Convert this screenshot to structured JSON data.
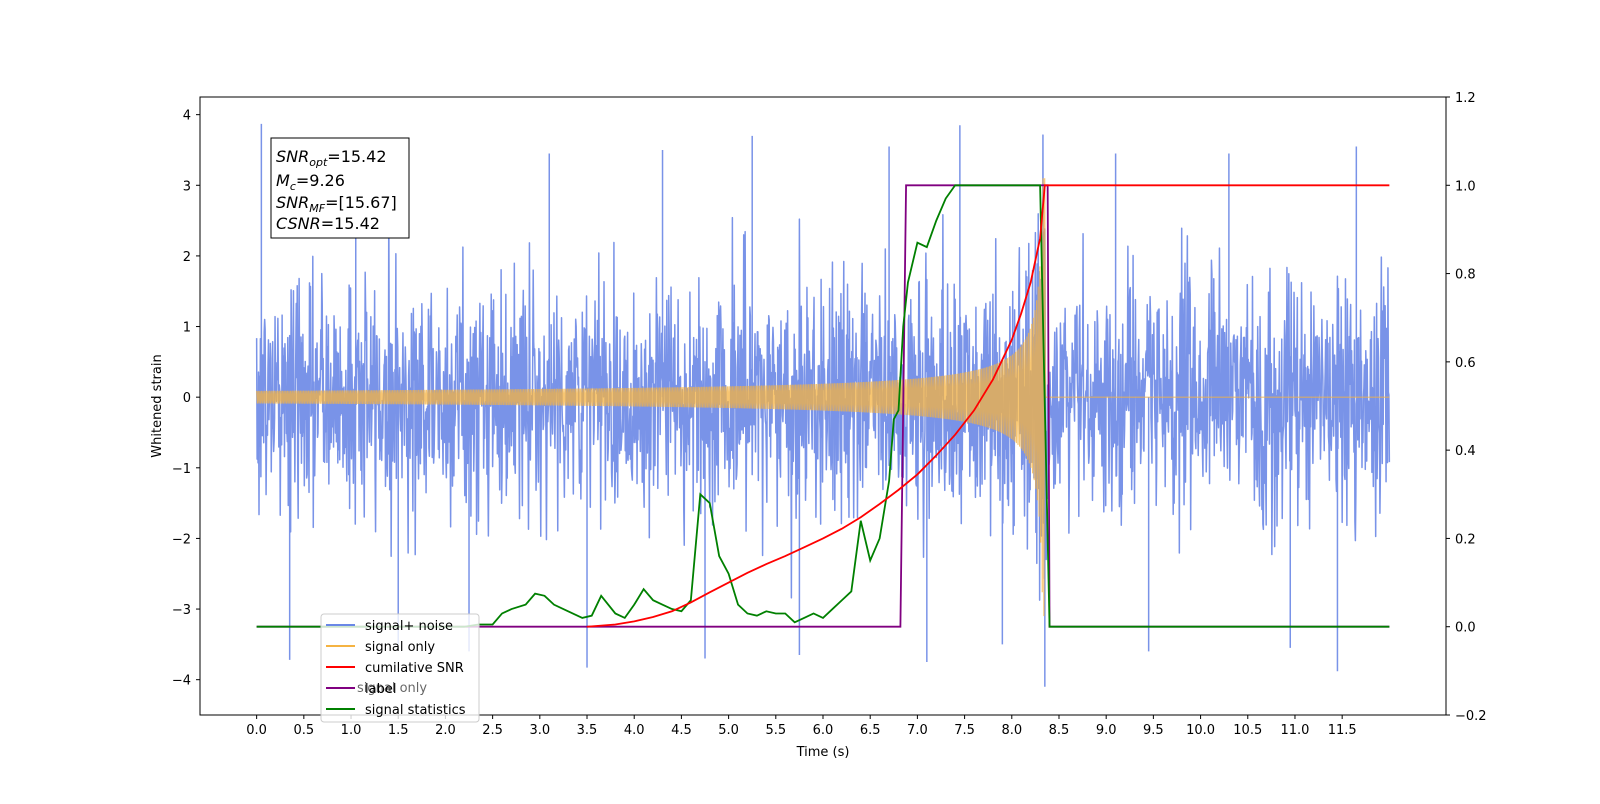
{
  "chart_data": {
    "type": "line",
    "xlabel": "Time (s)",
    "ylabel": "Whitened strain",
    "xlim": [
      -0.6,
      12.6
    ],
    "ylim": [
      -4.5,
      4.25
    ],
    "y2lim": [
      -0.2,
      1.2
    ],
    "x_ticks": [
      0.0,
      0.5,
      1.0,
      1.5,
      2.0,
      2.5,
      3.0,
      3.5,
      4.0,
      4.5,
      5.0,
      5.5,
      6.0,
      6.5,
      7.0,
      7.5,
      8.0,
      8.5,
      9.0,
      9.5,
      10.0,
      10.5,
      11.0,
      11.5
    ],
    "x_tick_labels": [
      "0.0",
      "0.5",
      "1.0",
      "1.5",
      "2.0",
      "2.5",
      "3.0",
      "3.5",
      "4.0",
      "4.5",
      "5.0",
      "5.5",
      "6.0",
      "6.5",
      "7.0",
      "7.5",
      "8.0",
      "8.5",
      "9.0",
      "9.5",
      "10.0",
      "10.5",
      "11.0",
      "11.5"
    ],
    "y_ticks": [
      -4,
      -3,
      -2,
      -1,
      0,
      1,
      2,
      3,
      4
    ],
    "y_tick_labels": [
      "−4",
      "−3",
      "−2",
      "−1",
      "0",
      "1",
      "2",
      "3",
      "4"
    ],
    "y2_ticks": [
      -0.2,
      0.0,
      0.2,
      0.4,
      0.6,
      0.8,
      1.0,
      1.2
    ],
    "y2_tick_labels": [
      "−0.2",
      "0.0",
      "0.2",
      "0.4",
      "0.6",
      "0.8",
      "1.0",
      "1.2"
    ],
    "annotation": {
      "snr_opt": {
        "symbol": "SNR",
        "sub": "opt",
        "value": "=15.42"
      },
      "mc": {
        "symbol": "M",
        "sub": "c",
        "value": "=9.26"
      },
      "snr_mf": {
        "symbol": "SNR",
        "sub": "MF",
        "value": "=[15.67]"
      },
      "csnr": {
        "symbol": "CSNR",
        "sub": "",
        "value": "=15.42"
      }
    },
    "series": [
      {
        "name": "signal+ noise",
        "color": "#6a87e6",
        "axis": "left",
        "noise_sigma": 1.0,
        "x_range": [
          0.0,
          12.0
        ],
        "spikes": [
          [
            0.05,
            3.87
          ],
          [
            0.35,
            -3.72
          ],
          [
            1.05,
            3.4
          ],
          [
            1.5,
            -3.5
          ],
          [
            2.25,
            -3.6
          ],
          [
            3.1,
            3.45
          ],
          [
            3.5,
            -3.83
          ],
          [
            4.3,
            3.5
          ],
          [
            4.75,
            -3.7
          ],
          [
            5.25,
            3.7
          ],
          [
            5.75,
            -3.65
          ],
          [
            6.7,
            3.55
          ],
          [
            7.1,
            -3.75
          ],
          [
            7.45,
            3.85
          ],
          [
            7.9,
            -3.5
          ],
          [
            8.35,
            -4.1
          ],
          [
            9.1,
            3.45
          ],
          [
            9.45,
            -3.6
          ],
          [
            10.3,
            3.45
          ],
          [
            10.95,
            -3.55
          ],
          [
            11.45,
            -3.88
          ],
          [
            11.65,
            3.55
          ]
        ]
      },
      {
        "name": "signal only",
        "color": "#f5b342",
        "axis": "left",
        "chirp": {
          "t_start": 0.0,
          "t_merge": 8.35,
          "t_end": 12.0,
          "amp_ref": 0.19,
          "amp_max": 3.1
        }
      },
      {
        "name": "cumilative SNR",
        "color": "#ff0000",
        "axis": "right",
        "x": [
          3.5,
          3.8,
          4.0,
          4.2,
          4.4,
          4.6,
          4.8,
          5.0,
          5.2,
          5.4,
          5.6,
          5.8,
          6.0,
          6.2,
          6.4,
          6.6,
          6.8,
          7.0,
          7.2,
          7.4,
          7.6,
          7.8,
          8.0,
          8.1,
          8.2,
          8.3,
          8.35,
          12.0
        ],
        "values": [
          0.0,
          0.005,
          0.012,
          0.022,
          0.035,
          0.055,
          0.078,
          0.1,
          0.122,
          0.142,
          0.16,
          0.18,
          0.2,
          0.222,
          0.248,
          0.278,
          0.31,
          0.345,
          0.388,
          0.435,
          0.49,
          0.56,
          0.65,
          0.71,
          0.78,
          0.88,
          1.0,
          1.0
        ]
      },
      {
        "name": "label",
        "color": "#800080",
        "axis": "right",
        "x": [
          0.0,
          6.82,
          6.88,
          8.38,
          8.4,
          12.0
        ],
        "values": [
          0.0,
          0.0,
          1.0,
          1.0,
          0.0,
          0.0
        ]
      },
      {
        "name": "signal statistics",
        "color": "#008000",
        "axis": "right",
        "x": [
          0.0,
          2.2,
          2.35,
          2.5,
          2.6,
          2.7,
          2.85,
          2.95,
          3.05,
          3.15,
          3.3,
          3.45,
          3.55,
          3.65,
          3.8,
          3.9,
          4.0,
          4.1,
          4.2,
          4.3,
          4.4,
          4.5,
          4.6,
          4.7,
          4.8,
          4.9,
          5.0,
          5.1,
          5.2,
          5.3,
          5.4,
          5.5,
          5.6,
          5.7,
          5.8,
          5.9,
          6.0,
          6.1,
          6.2,
          6.3,
          6.4,
          6.5,
          6.6,
          6.7,
          6.75,
          6.8,
          6.85,
          6.9,
          7.0,
          7.1,
          7.2,
          7.3,
          7.4,
          7.5,
          7.6,
          7.8,
          8.0,
          8.2,
          8.3,
          8.35,
          8.4,
          8.45,
          12.0
        ],
        "values": [
          0.0,
          0.0,
          0.005,
          0.005,
          0.03,
          0.04,
          0.05,
          0.075,
          0.07,
          0.05,
          0.035,
          0.02,
          0.025,
          0.07,
          0.03,
          0.02,
          0.05,
          0.085,
          0.06,
          0.05,
          0.04,
          0.035,
          0.06,
          0.3,
          0.28,
          0.16,
          0.12,
          0.05,
          0.03,
          0.025,
          0.035,
          0.03,
          0.03,
          0.01,
          0.02,
          0.03,
          0.02,
          0.04,
          0.06,
          0.08,
          0.24,
          0.15,
          0.2,
          0.33,
          0.47,
          0.49,
          0.68,
          0.78,
          0.87,
          0.86,
          0.92,
          0.97,
          1.0,
          1.0,
          1.0,
          1.0,
          1.0,
          1.0,
          1.0,
          0.5,
          0.0,
          0.0,
          0.0
        ]
      }
    ],
    "legend": {
      "placement": "lower-left",
      "entries": [
        {
          "label": "signal+ noise",
          "color": "#6a87e6"
        },
        {
          "label": "signal only",
          "color": "#f5b342"
        },
        {
          "label": "cumilative SNR",
          "color": "#ff0000"
        },
        {
          "label": "label",
          "color": "#800080"
        },
        {
          "label": "signal statistics",
          "color": "#008000"
        }
      ],
      "hidden_label": "signal only"
    }
  }
}
